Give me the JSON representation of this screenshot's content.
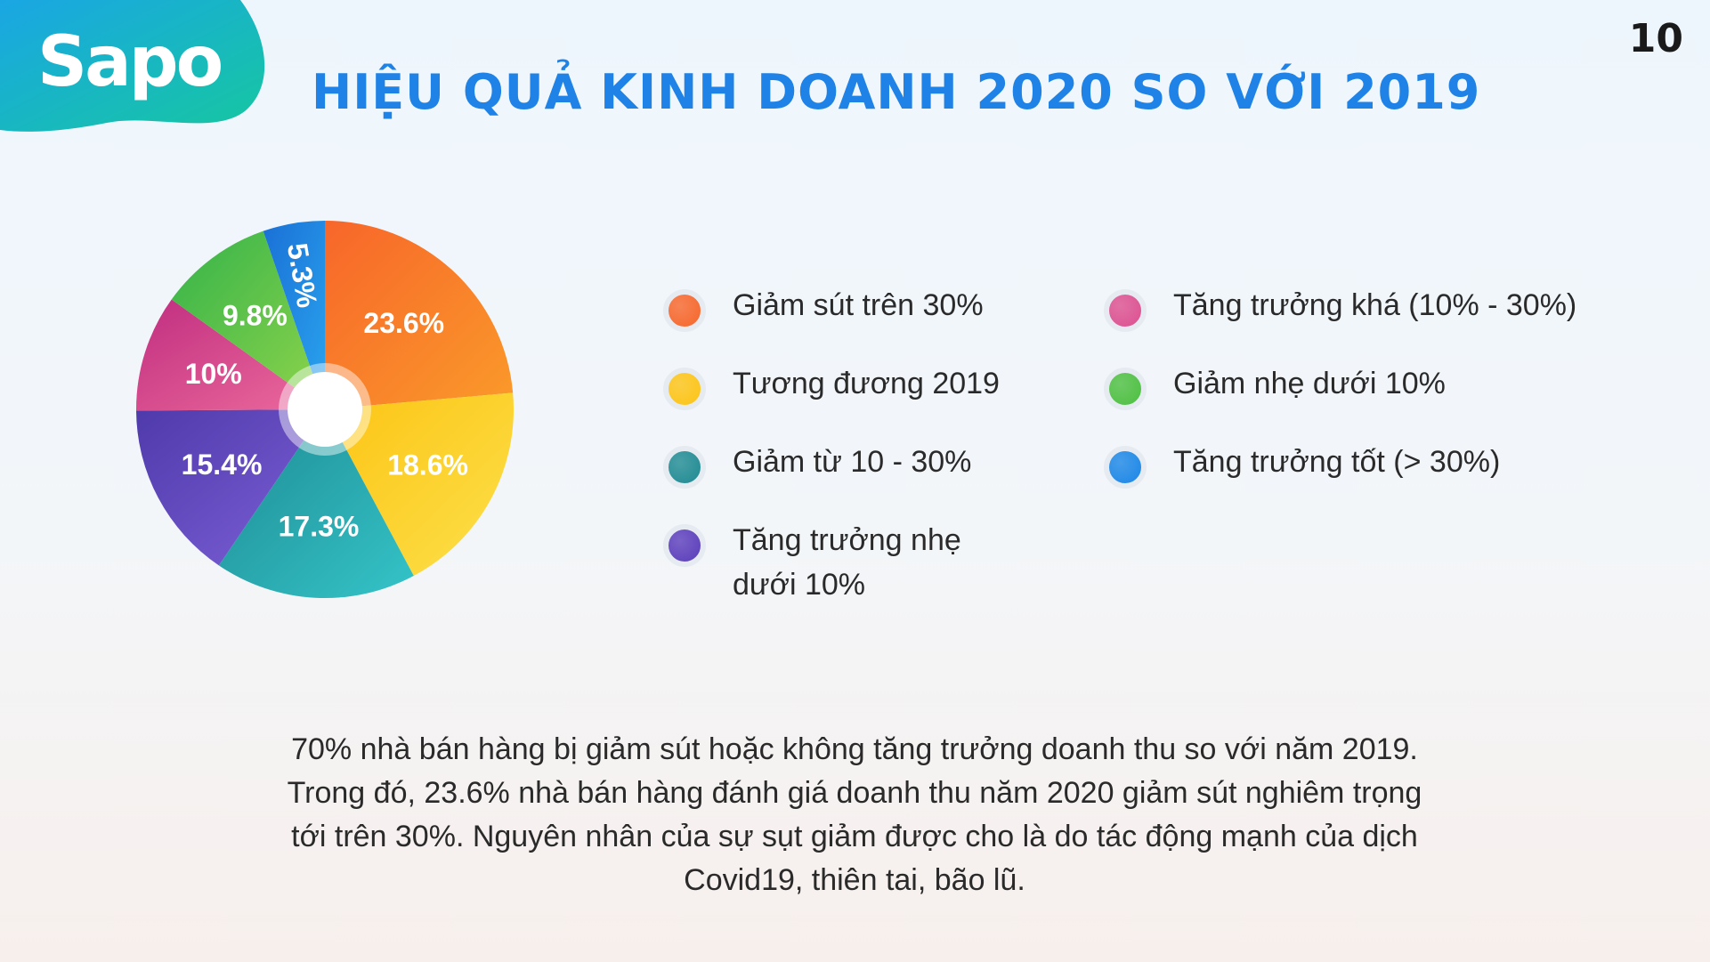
{
  "header": {
    "logo_text": "Sapo",
    "page_number": "10",
    "title": "HIỆU QUẢ KINH DOANH 2020 SO VỚI 2019"
  },
  "chart_data": {
    "type": "pie",
    "title": "HIỆU QUẢ KINH DOANH 2020 SO VỚI 2019",
    "slices": [
      {
        "name": "Giảm sút trên 30%",
        "value": 23.6,
        "label": "23.6%",
        "color": "#f7662a",
        "color2": "#fa9a2a"
      },
      {
        "name": "Tương đương 2019",
        "value": 18.6,
        "label": "18.6%",
        "color": "#fdc414",
        "color2": "#fbe04a"
      },
      {
        "name": "Giảm từ 10 - 30%",
        "value": 17.3,
        "label": "17.3%",
        "color": "#1e8a92",
        "color2": "#34c4c8"
      },
      {
        "name": "Tăng trưởng nhẹ dưới 10%",
        "value": 15.4,
        "label": "15.4%",
        "color": "#4f3aab",
        "color2": "#7c60d6"
      },
      {
        "name": "Tăng trưởng khá (10% - 30%)",
        "value": 10,
        "label": "10%",
        "color": "#c02e80",
        "color2": "#ec6a9c"
      },
      {
        "name": "Giảm nhẹ dưới 10%",
        "value": 9.8,
        "label": "9.8%",
        "color": "#33b34a",
        "color2": "#8fd44a"
      },
      {
        "name": "Tăng trưởng tốt (> 30%)",
        "value": 5.3,
        "label": "5.3%",
        "color": "#1a70d6",
        "color2": "#2aa4ee"
      }
    ],
    "legend_position": "right"
  },
  "legend": {
    "items": [
      {
        "label": "Giảm sút trên 30%",
        "color": "#f7662a"
      },
      {
        "label": "Tương đương 2019",
        "color": "#fdc414"
      },
      {
        "label": "Giảm từ 10 - 30%",
        "color": "#1e8a92"
      },
      {
        "label": "Tăng trưởng nhẹ dưới 10%",
        "color": "#5a3cbb"
      },
      {
        "label": "Tăng trưởng khá (10% - 30%)",
        "color": "#dc4f8f"
      },
      {
        "label": "Giảm nhẹ dưới 10%",
        "color": "#4cbf3f"
      },
      {
        "label": "Tăng trưởng tốt (> 30%)",
        "color": "#1a86e6"
      }
    ]
  },
  "footer": {
    "text": "70% nhà bán hàng bị giảm sút hoặc không tăng trưởng doanh thu so với năm 2019. Trong đó, 23.6% nhà bán hàng đánh giá doanh thu năm 2020 giảm sút nghiêm trọng tới trên 30%. Nguyên nhân của sự sụt giảm được cho là do tác động mạnh của dịch Covid19, thiên tai, bão lũ."
  },
  "colors": {
    "title": "#1e82e6",
    "logo_gradient_start": "#1aa6e4",
    "logo_gradient_end": "#16c7a0"
  }
}
